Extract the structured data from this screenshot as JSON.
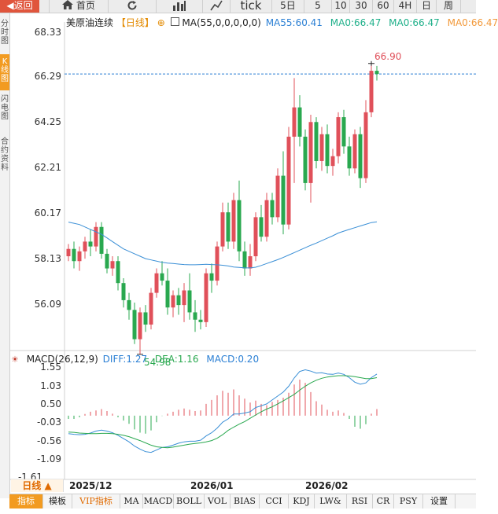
{
  "toolbar": {
    "back": "返回",
    "home": "首页",
    "tick": "tick",
    "periods": [
      "5日",
      "5",
      "10",
      "30",
      "60",
      "4H",
      "日",
      "周"
    ]
  },
  "side_tabs": [
    {
      "label": "分时图",
      "active": false
    },
    {
      "label": "K线图",
      "active": true
    },
    {
      "label": "闪电图",
      "active": false
    },
    {
      "label": "合约资料",
      "active": false
    }
  ],
  "legend": {
    "name": "美原油连续",
    "period": "【日线】",
    "ma_params": "MA(55,0,0,0,0,0)",
    "ma55": "MA55:60.41",
    "ma0a": "MA0:66.47",
    "ma0b": "MA0:66.47",
    "ma0c": "MA0:66.47"
  },
  "macd_legend": {
    "params": "MACD(26,12,9)",
    "diff": "DIFF:1.27",
    "dea": "DEA:1.16",
    "macd": "MACD:0.20"
  },
  "period_button": "日线 ▲",
  "x_labels": [
    "2025/12",
    "2026/01",
    "2026/02"
  ],
  "bottom_tabs": [
    "指标",
    "模板",
    "VIP指标",
    "MA",
    "MACD",
    "BOLL",
    "VOL",
    "BIAS",
    "CCI",
    "KDJ",
    "LW&",
    "RSI",
    "CR",
    "PSY",
    "设置"
  ],
  "colors": {
    "up": "#e0505a",
    "down": "#29a84f",
    "ma": "#3a8fd6",
    "diff": "#3a8fd6",
    "dea": "#29a84f",
    "last": "#2a7fd4",
    "accent": "#f29b21"
  },
  "chart_data": [
    {
      "type": "candlestick",
      "title": "美原油连续 日线",
      "y_ticks": [
        "68.33",
        "66.29",
        "64.25",
        "62.21",
        "60.17",
        "58.13",
        "56.09"
      ],
      "ylim": [
        55.2,
        68.6
      ],
      "high_label": "66.90",
      "low_label": "54.98",
      "last_price": 66.47,
      "candles": [
        [
          59.0,
          59.5,
          58.8,
          59.3
        ],
        [
          59.3,
          59.6,
          58.5,
          58.8
        ],
        [
          58.8,
          59.4,
          58.4,
          59.2
        ],
        [
          59.2,
          59.8,
          58.9,
          59.6
        ],
        [
          59.6,
          60.1,
          59.0,
          59.4
        ],
        [
          59.4,
          60.4,
          59.2,
          60.2
        ],
        [
          60.2,
          60.4,
          58.9,
          59.1
        ],
        [
          59.1,
          59.3,
          58.3,
          58.5
        ],
        [
          58.5,
          59.0,
          58.2,
          58.8
        ],
        [
          58.8,
          59.0,
          57.6,
          57.9
        ],
        [
          57.9,
          58.1,
          56.9,
          57.2
        ],
        [
          57.2,
          57.5,
          56.4,
          56.8
        ],
        [
          56.8,
          57.1,
          55.4,
          55.6
        ],
        [
          55.6,
          56.9,
          54.98,
          56.7
        ],
        [
          56.7,
          57.0,
          55.9,
          56.2
        ],
        [
          56.2,
          57.7,
          56.0,
          57.5
        ],
        [
          57.5,
          58.5,
          57.3,
          58.3
        ],
        [
          58.3,
          58.8,
          57.8,
          58.0
        ],
        [
          58.0,
          58.5,
          56.6,
          56.9
        ],
        [
          56.9,
          57.6,
          56.5,
          57.4
        ],
        [
          57.4,
          57.7,
          56.6,
          57.0
        ],
        [
          57.0,
          57.9,
          56.3,
          57.6
        ],
        [
          57.6,
          58.3,
          56.4,
          56.7
        ],
        [
          56.7,
          57.2,
          55.9,
          56.4
        ],
        [
          56.4,
          56.8,
          56.0,
          56.3
        ],
        [
          56.3,
          58.5,
          56.1,
          58.3
        ],
        [
          58.3,
          58.7,
          57.5,
          58.0
        ],
        [
          58.0,
          59.6,
          57.8,
          59.4
        ],
        [
          59.4,
          61.2,
          59.2,
          60.8
        ],
        [
          60.8,
          61.2,
          59.3,
          59.6
        ],
        [
          59.6,
          61.6,
          59.3,
          61.3
        ],
        [
          61.3,
          62.1,
          58.8,
          59.2
        ],
        [
          59.2,
          59.6,
          58.2,
          58.5
        ],
        [
          58.5,
          59.5,
          58.2,
          59.0
        ],
        [
          59.0,
          60.8,
          58.8,
          60.6
        ],
        [
          60.6,
          61.1,
          59.6,
          59.8
        ],
        [
          59.8,
          61.6,
          59.6,
          61.3
        ],
        [
          61.3,
          61.6,
          60.3,
          60.6
        ],
        [
          60.6,
          62.6,
          60.4,
          62.3
        ],
        [
          62.3,
          63.3,
          59.9,
          60.3
        ],
        [
          60.3,
          64.3,
          60.1,
          63.9
        ],
        [
          63.9,
          66.3,
          62.0,
          65.1
        ],
        [
          65.1,
          65.6,
          63.5,
          63.9
        ],
        [
          63.9,
          64.2,
          61.7,
          62.0
        ],
        [
          62.0,
          64.8,
          61.2,
          64.5
        ],
        [
          64.5,
          64.7,
          62.6,
          62.9
        ],
        [
          62.9,
          64.3,
          62.5,
          64.0
        ],
        [
          64.0,
          64.4,
          62.4,
          62.7
        ],
        [
          62.7,
          63.4,
          62.3,
          63.1
        ],
        [
          63.1,
          64.9,
          62.8,
          64.7
        ],
        [
          64.7,
          65.0,
          63.2,
          63.5
        ],
        [
          63.5,
          63.9,
          62.3,
          62.6
        ],
        [
          62.6,
          64.2,
          62.4,
          64.0
        ],
        [
          64.0,
          64.3,
          61.8,
          62.2
        ],
        [
          62.2,
          65.4,
          62.0,
          64.9
        ],
        [
          64.9,
          66.9,
          64.7,
          66.6
        ],
        [
          66.6,
          66.8,
          66.2,
          66.47
        ]
      ],
      "ma55": [
        60.4,
        60.35,
        60.3,
        60.2,
        60.1,
        60.0,
        59.9,
        59.75,
        59.6,
        59.45,
        59.3,
        59.2,
        59.1,
        59.0,
        58.9,
        58.85,
        58.8,
        58.75,
        58.72,
        58.7,
        58.68,
        58.66,
        58.65,
        58.65,
        58.66,
        58.67,
        58.66,
        58.65,
        58.63,
        58.6,
        58.56,
        58.54,
        58.52,
        58.52,
        58.55,
        58.62,
        58.7,
        58.78,
        58.86,
        58.95,
        59.05,
        59.15,
        59.25,
        59.35,
        59.45,
        59.54,
        59.64,
        59.74,
        59.84,
        59.95,
        60.03,
        60.1,
        60.17,
        60.24,
        60.31,
        60.38,
        60.41
      ]
    },
    {
      "type": "macd",
      "y_ticks": [
        "1.55",
        "1.03",
        "0.50",
        "-0.03",
        "-0.56",
        "-1.09",
        "-1.61"
      ],
      "ylim": [
        -1.85,
        1.7
      ],
      "diff": [
        -0.55,
        -0.57,
        -0.58,
        -0.57,
        -0.53,
        -0.47,
        -0.44,
        -0.47,
        -0.52,
        -0.6,
        -0.7,
        -0.8,
        -0.93,
        -1.02,
        -1.1,
        -1.12,
        -1.05,
        -0.97,
        -0.95,
        -0.9,
        -0.84,
        -0.8,
        -0.78,
        -0.78,
        -0.75,
        -0.62,
        -0.52,
        -0.38,
        -0.2,
        -0.1,
        0.05,
        0.05,
        0.08,
        0.12,
        0.25,
        0.3,
        0.36,
        0.48,
        0.6,
        0.72,
        0.9,
        1.15,
        1.35,
        1.4,
        1.36,
        1.3,
        1.31,
        1.27,
        1.26,
        1.3,
        1.26,
        1.16,
        1.02,
        0.96,
        1.0,
        1.16,
        1.27
      ],
      "dea": [
        -0.5,
        -0.51,
        -0.53,
        -0.54,
        -0.55,
        -0.55,
        -0.54,
        -0.54,
        -0.55,
        -0.57,
        -0.6,
        -0.64,
        -0.7,
        -0.76,
        -0.83,
        -0.9,
        -0.95,
        -0.97,
        -0.98,
        -0.96,
        -0.93,
        -0.9,
        -0.87,
        -0.85,
        -0.83,
        -0.8,
        -0.76,
        -0.69,
        -0.58,
        -0.45,
        -0.35,
        -0.26,
        -0.18,
        -0.08,
        0.02,
        0.12,
        0.2,
        0.27,
        0.36,
        0.45,
        0.55,
        0.65,
        0.78,
        0.9,
        1.0,
        1.08,
        1.14,
        1.18,
        1.2,
        1.22,
        1.22,
        1.21,
        1.19,
        1.16,
        1.13,
        1.13,
        1.16
      ],
      "hist": [
        -0.1,
        -0.1,
        -0.05,
        0.05,
        0.12,
        0.16,
        0.2,
        0.14,
        0.06,
        -0.05,
        -0.15,
        -0.25,
        -0.42,
        -0.52,
        -0.55,
        -0.45,
        -0.2,
        -0.01,
        0.06,
        0.12,
        0.18,
        0.22,
        0.18,
        0.14,
        0.16,
        0.36,
        0.48,
        0.62,
        0.76,
        0.7,
        0.8,
        0.62,
        0.52,
        0.4,
        0.46,
        0.36,
        0.32,
        0.42,
        0.48,
        0.55,
        0.7,
        0.95,
        1.1,
        1.0,
        0.72,
        0.44,
        0.34,
        0.18,
        0.12,
        0.16,
        0.08,
        -0.1,
        -0.34,
        -0.4,
        -0.26,
        0.06,
        0.2
      ]
    }
  ]
}
